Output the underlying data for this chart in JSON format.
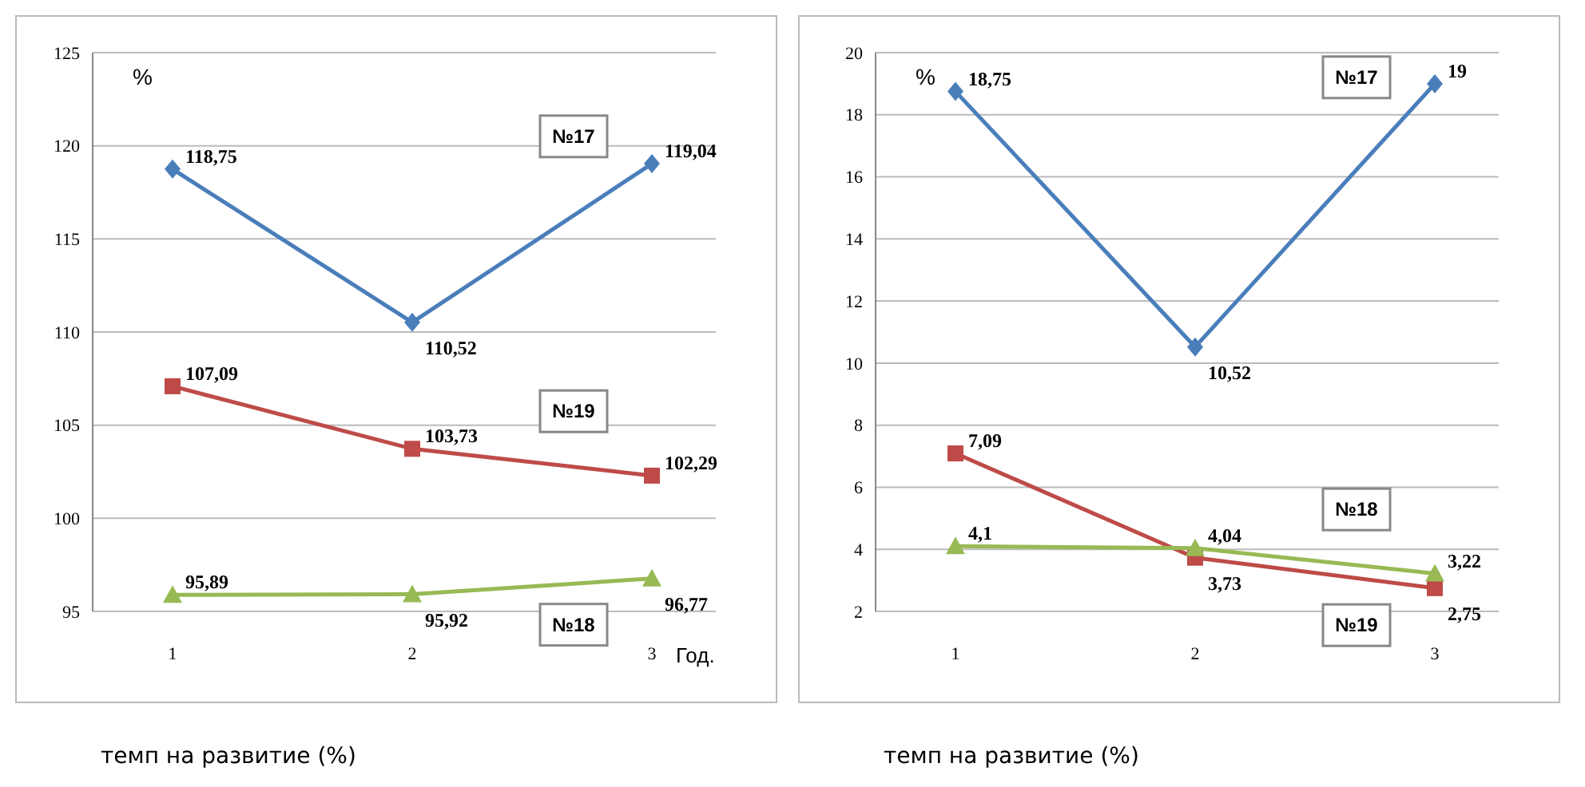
{
  "chart_data": [
    {
      "type": "line",
      "ylabel": "%",
      "xlabel": "Год.",
      "categories": [
        "1",
        "2",
        "3"
      ],
      "ylim": [
        95,
        125
      ],
      "yticks": [
        95,
        100,
        105,
        110,
        115,
        120,
        125
      ],
      "grid": "y",
      "line_style": "solid",
      "annotations": [
        "темп на развитие (%)"
      ],
      "series": [
        {
          "name": "№17",
          "color": "#4a7ebb",
          "marker": "diamond",
          "values": [
            118.75,
            110.52,
            119.04
          ],
          "value_labels": [
            "118,75",
            "110,52",
            "119,04"
          ]
        },
        {
          "name": "№19",
          "color": "#be4b48",
          "marker": "square",
          "values": [
            107.09,
            103.73,
            102.29
          ],
          "value_labels": [
            "107,09",
            "103,73",
            "102,29"
          ]
        },
        {
          "name": "№18",
          "color": "#98b954",
          "marker": "triangle",
          "values": [
            95.89,
            95.92,
            96.77
          ],
          "value_labels": [
            "95,89",
            "95,92",
            "96,77"
          ]
        }
      ]
    },
    {
      "type": "line",
      "ylabel": "%",
      "categories": [
        "1",
        "2",
        "3"
      ],
      "ylim": [
        2,
        20
      ],
      "yticks": [
        2,
        4,
        6,
        8,
        10,
        12,
        14,
        16,
        18,
        20
      ],
      "grid": "y",
      "line_style": "solid",
      "annotations": [
        "темп на развитие (%)"
      ],
      "series": [
        {
          "name": "№17",
          "color": "#4a7ebb",
          "marker": "diamond",
          "values": [
            18.75,
            10.52,
            19
          ],
          "value_labels": [
            "18,75",
            "10,52",
            "19"
          ]
        },
        {
          "name": "№19",
          "color": "#be4b48",
          "marker": "square",
          "values": [
            7.09,
            3.73,
            2.75
          ],
          "value_labels": [
            "7,09",
            "3,73",
            "2,75"
          ]
        },
        {
          "name": "№18",
          "color": "#98b954",
          "marker": "triangle",
          "values": [
            4.1,
            4.04,
            3.22
          ],
          "value_labels": [
            "4,1",
            "4,04",
            "3,22"
          ]
        }
      ]
    }
  ]
}
